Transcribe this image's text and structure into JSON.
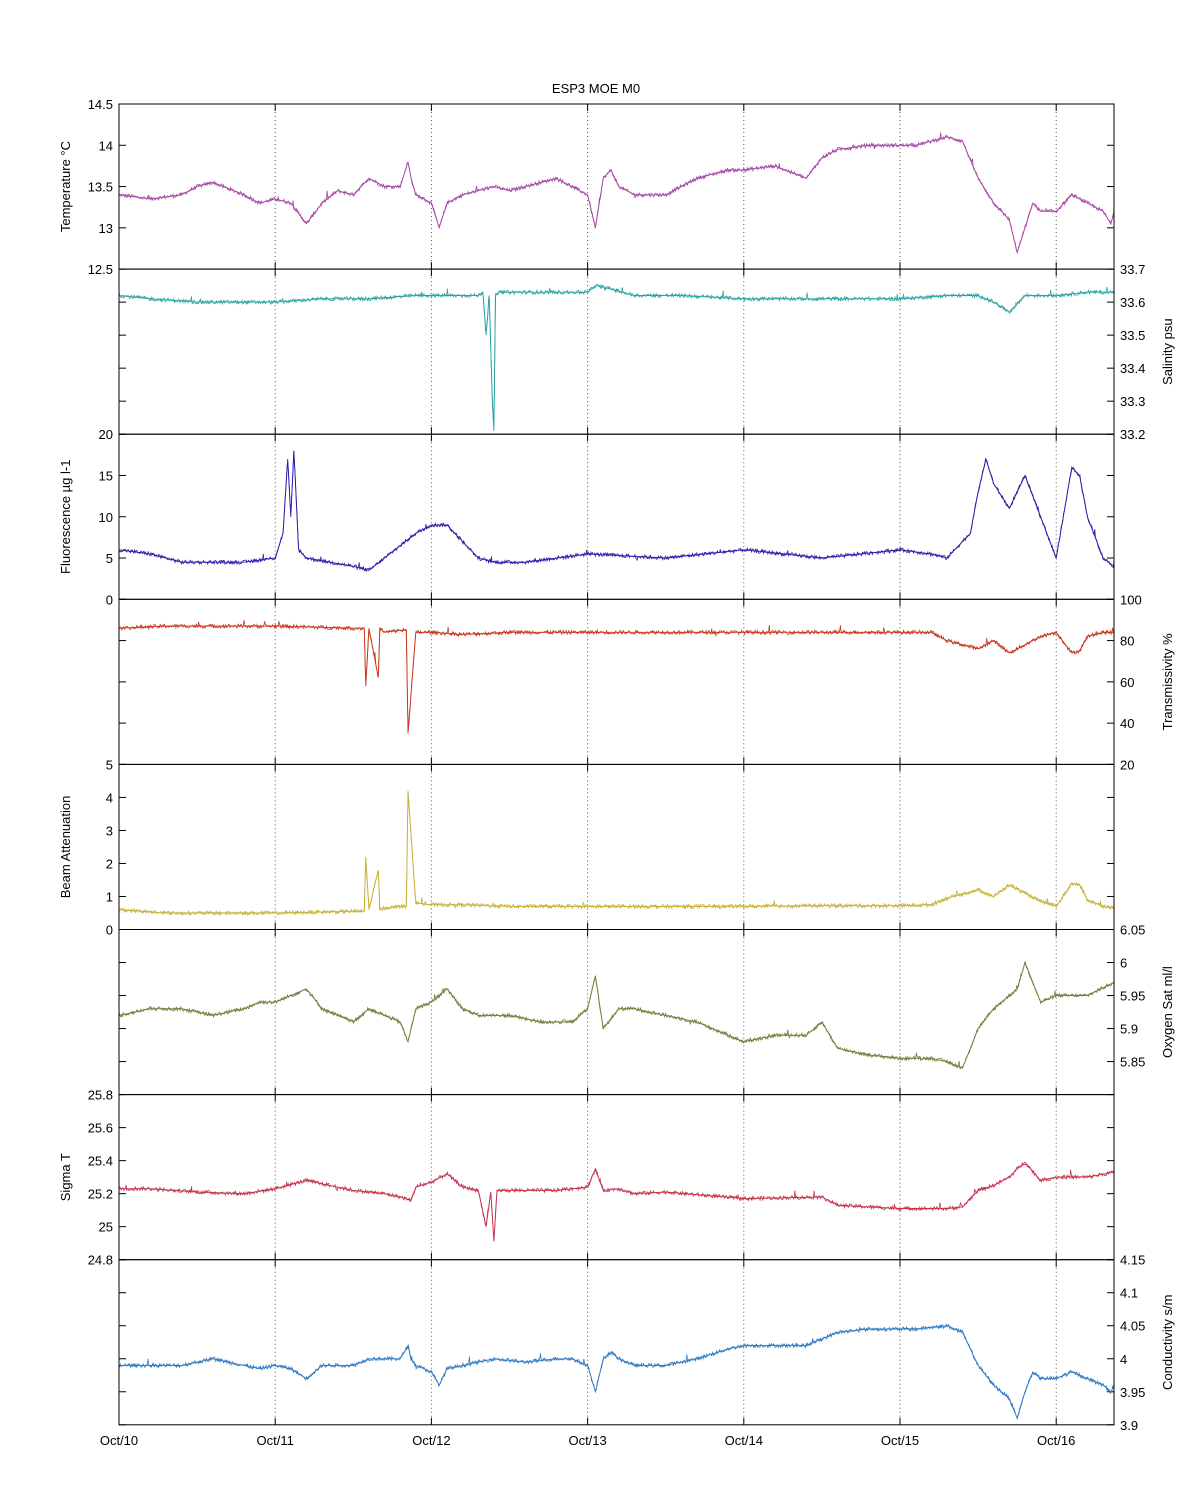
{
  "chart_data": {
    "type": "line",
    "title": "ESP3 MOE   M0",
    "x_tick_labels": [
      "Oct/10",
      "Oct/11",
      "Oct/12",
      "Oct/13",
      "Oct/14",
      "Oct/15",
      "Oct/16"
    ],
    "xlim": [
      "Oct/10",
      "Oct/16 + 0.37 day"
    ],
    "x_unit": "day since Oct/10",
    "grid": "vertical dotted at day ticks",
    "panels": [
      {
        "ylabel": "Temperature °C",
        "axis_side": "left",
        "color": "#a54aa5",
        "ylim": [
          12.5,
          14.5
        ],
        "ticks": [
          12.5,
          13,
          13.5,
          14,
          14.5
        ],
        "tick_labels": [
          "12.5",
          "13",
          "13.5",
          "14",
          "14.5"
        ],
        "x": [
          0,
          0.2,
          0.4,
          0.5,
          0.6,
          0.8,
          0.9,
          1.0,
          1.1,
          1.2,
          1.3,
          1.4,
          1.5,
          1.6,
          1.7,
          1.8,
          1.85,
          1.87,
          1.9,
          2.0,
          2.05,
          2.1,
          2.2,
          2.3,
          2.4,
          2.5,
          2.6,
          2.8,
          2.9,
          3.0,
          3.05,
          3.1,
          3.15,
          3.2,
          3.3,
          3.5,
          3.7,
          3.9,
          4.0,
          4.2,
          4.4,
          4.5,
          4.6,
          4.8,
          5.0,
          5.1,
          5.3,
          5.4,
          5.5,
          5.6,
          5.7,
          5.75,
          5.8,
          5.85,
          5.9,
          6.0,
          6.1,
          6.2,
          6.3,
          6.35,
          6.37
        ],
        "y": [
          13.4,
          13.35,
          13.4,
          13.5,
          13.55,
          13.4,
          13.3,
          13.35,
          13.3,
          13.05,
          13.3,
          13.45,
          13.4,
          13.6,
          13.5,
          13.5,
          13.8,
          13.6,
          13.4,
          13.3,
          13.0,
          13.3,
          13.4,
          13.45,
          13.5,
          13.45,
          13.5,
          13.6,
          13.5,
          13.4,
          13.0,
          13.6,
          13.7,
          13.5,
          13.4,
          13.4,
          13.6,
          13.7,
          13.7,
          13.75,
          13.6,
          13.85,
          13.95,
          14.0,
          14.0,
          14.0,
          14.1,
          14.05,
          13.6,
          13.3,
          13.1,
          12.7,
          13.0,
          13.3,
          13.2,
          13.2,
          13.4,
          13.3,
          13.2,
          13.05,
          13.2
        ]
      },
      {
        "ylabel": "Salinity psu",
        "axis_side": "right",
        "color": "#2aa3a3",
        "ylim": [
          33.2,
          33.7
        ],
        "ticks": [
          33.2,
          33.3,
          33.4,
          33.5,
          33.6,
          33.7
        ],
        "tick_labels": [
          "33.2",
          "33.3",
          "33.4",
          "33.5",
          "33.6",
          "33.7"
        ],
        "x": [
          0,
          0.2,
          0.5,
          1.0,
          1.3,
          1.6,
          1.9,
          2.1,
          2.3,
          2.33,
          2.35,
          2.37,
          2.39,
          2.4,
          2.41,
          2.43,
          2.5,
          2.8,
          3.0,
          3.05,
          3.15,
          3.3,
          3.6,
          4.0,
          4.5,
          5.0,
          5.3,
          5.5,
          5.6,
          5.7,
          5.8,
          6.0,
          6.2,
          6.3,
          6.37
        ],
        "y": [
          33.62,
          33.61,
          33.6,
          33.6,
          33.61,
          33.61,
          33.62,
          33.62,
          33.62,
          33.63,
          33.5,
          33.62,
          33.3,
          33.21,
          33.62,
          33.63,
          33.63,
          33.63,
          33.63,
          33.65,
          33.64,
          33.62,
          33.62,
          33.61,
          33.61,
          33.61,
          33.62,
          33.62,
          33.6,
          33.57,
          33.62,
          33.62,
          33.63,
          33.63,
          33.63
        ]
      },
      {
        "ylabel": "Fluorescence µg l-1",
        "axis_side": "left",
        "color": "#2a1ea8",
        "ylim": [
          0,
          20
        ],
        "ticks": [
          0,
          5,
          10,
          15,
          20
        ],
        "tick_labels": [
          "0",
          "5",
          "10",
          "15",
          "20"
        ],
        "x": [
          0,
          0.2,
          0.4,
          0.6,
          0.8,
          1.0,
          1.05,
          1.08,
          1.1,
          1.12,
          1.15,
          1.2,
          1.5,
          1.6,
          1.7,
          1.9,
          2.0,
          2.1,
          2.2,
          2.3,
          2.4,
          2.6,
          3.0,
          3.5,
          4.0,
          4.5,
          5.0,
          5.2,
          5.3,
          5.45,
          5.5,
          5.55,
          5.6,
          5.7,
          5.8,
          5.9,
          6.0,
          6.1,
          6.15,
          6.2,
          6.3,
          6.37
        ],
        "y": [
          6,
          5.5,
          4.5,
          4.5,
          4.5,
          5,
          8,
          17,
          10,
          18,
          6,
          5,
          4,
          3.5,
          5,
          8,
          9,
          9,
          7,
          5,
          4.5,
          4.5,
          5.5,
          5,
          6,
          5,
          6,
          5.5,
          5,
          8,
          13,
          17,
          14,
          11,
          15,
          10,
          5,
          16,
          15,
          10,
          5,
          4
        ]
      },
      {
        "ylabel": "Transmissivity %",
        "axis_side": "right",
        "color": "#c8371e",
        "ylim": [
          20,
          100
        ],
        "ticks": [
          20,
          40,
          60,
          80,
          100
        ],
        "tick_labels": [
          "20",
          "40",
          "60",
          "80",
          "100"
        ],
        "x": [
          0,
          0.3,
          1.0,
          1.5,
          1.57,
          1.58,
          1.6,
          1.66,
          1.67,
          1.7,
          1.8,
          1.84,
          1.85,
          1.9,
          2.0,
          2.2,
          2.5,
          3.0,
          3.5,
          4.0,
          4.5,
          5.0,
          5.2,
          5.3,
          5.5,
          5.6,
          5.7,
          5.8,
          5.9,
          6.0,
          6.1,
          6.15,
          6.2,
          6.3,
          6.37
        ],
        "y": [
          86,
          87,
          87,
          86,
          86,
          58,
          86,
          62,
          86,
          84,
          85,
          85,
          35,
          84,
          84,
          83,
          84,
          84,
          84,
          84,
          84,
          84,
          84,
          80,
          76,
          80,
          74,
          78,
          82,
          84,
          74,
          75,
          82,
          84,
          84
        ]
      },
      {
        "ylabel": "Beam Attenuation",
        "axis_side": "left",
        "color": "#c6b13a",
        "ylim": [
          0,
          5
        ],
        "ticks": [
          0,
          1,
          2,
          3,
          4,
          5
        ],
        "tick_labels": [
          "0",
          "1",
          "2",
          "3",
          "4",
          "5"
        ],
        "x": [
          0,
          0.3,
          1.0,
          1.5,
          1.57,
          1.58,
          1.6,
          1.66,
          1.67,
          1.7,
          1.8,
          1.84,
          1.85,
          1.9,
          2.0,
          2.2,
          2.5,
          3.0,
          3.5,
          4.0,
          4.5,
          5.0,
          5.2,
          5.3,
          5.5,
          5.6,
          5.7,
          5.8,
          5.9,
          6.0,
          6.1,
          6.15,
          6.2,
          6.3,
          6.37
        ],
        "y": [
          0.6,
          0.5,
          0.5,
          0.55,
          0.55,
          2.2,
          0.6,
          1.8,
          0.6,
          0.65,
          0.7,
          0.7,
          4.2,
          0.8,
          0.75,
          0.75,
          0.7,
          0.7,
          0.7,
          0.7,
          0.72,
          0.72,
          0.75,
          0.95,
          1.2,
          1.0,
          1.35,
          1.1,
          0.85,
          0.7,
          1.4,
          1.35,
          0.9,
          0.7,
          0.65
        ]
      },
      {
        "ylabel": "Oxygen Sat ml/l",
        "axis_side": "right",
        "color": "#7a7a3c",
        "ylim": [
          5.8,
          6.05
        ],
        "ticks": [
          5.85,
          5.9,
          5.95,
          6,
          6.05
        ],
        "tick_labels": [
          "5.85",
          "5.9",
          "5.95",
          "6",
          "6.05"
        ],
        "x": [
          0,
          0.2,
          0.4,
          0.6,
          0.8,
          0.9,
          1.0,
          1.1,
          1.2,
          1.3,
          1.5,
          1.6,
          1.7,
          1.8,
          1.85,
          1.9,
          2.0,
          2.1,
          2.2,
          2.3,
          2.5,
          2.7,
          2.9,
          3.0,
          3.05,
          3.1,
          3.2,
          3.3,
          3.5,
          3.7,
          3.9,
          4.0,
          4.2,
          4.4,
          4.5,
          4.6,
          4.8,
          5.0,
          5.2,
          5.3,
          5.4,
          5.5,
          5.6,
          5.7,
          5.75,
          5.8,
          5.9,
          6.0,
          6.2,
          6.37
        ],
        "y": [
          5.92,
          5.93,
          5.93,
          5.92,
          5.93,
          5.94,
          5.94,
          5.95,
          5.96,
          5.93,
          5.91,
          5.93,
          5.92,
          5.91,
          5.88,
          5.93,
          5.94,
          5.96,
          5.93,
          5.92,
          5.92,
          5.91,
          5.91,
          5.93,
          5.98,
          5.9,
          5.93,
          5.93,
          5.92,
          5.91,
          5.89,
          5.88,
          5.89,
          5.89,
          5.91,
          5.87,
          5.86,
          5.855,
          5.855,
          5.85,
          5.84,
          5.9,
          5.93,
          5.95,
          5.96,
          6.0,
          5.94,
          5.95,
          5.95,
          5.97
        ]
      },
      {
        "ylabel": "Sigma T",
        "axis_side": "left",
        "color": "#c4344e",
        "ylim": [
          24.8,
          25.8
        ],
        "ticks": [
          24.8,
          25,
          25.2,
          25.4,
          25.6,
          25.8
        ],
        "tick_labels": [
          "24.8",
          "25",
          "25.2",
          "25.4",
          "25.6",
          "25.8"
        ],
        "x": [
          0,
          0.2,
          0.5,
          0.8,
          1.0,
          1.2,
          1.5,
          1.7,
          1.8,
          1.87,
          1.9,
          2.0,
          2.1,
          2.2,
          2.3,
          2.35,
          2.38,
          2.4,
          2.42,
          2.5,
          2.8,
          3.0,
          3.05,
          3.1,
          3.2,
          3.3,
          3.5,
          4.0,
          4.5,
          4.6,
          4.8,
          5.0,
          5.2,
          5.3,
          5.4,
          5.5,
          5.6,
          5.7,
          5.75,
          5.8,
          5.9,
          6.0,
          6.2,
          6.37
        ],
        "y": [
          25.23,
          25.23,
          25.21,
          25.2,
          25.23,
          25.28,
          25.22,
          25.2,
          25.18,
          25.16,
          25.24,
          25.27,
          25.32,
          25.24,
          25.22,
          25.0,
          25.21,
          24.91,
          25.22,
          25.22,
          25.22,
          25.24,
          25.35,
          25.22,
          25.23,
          25.2,
          25.21,
          25.17,
          25.18,
          25.13,
          25.12,
          25.11,
          25.11,
          25.11,
          25.12,
          25.22,
          25.25,
          25.3,
          25.35,
          25.39,
          25.28,
          25.3,
          25.3,
          25.33
        ]
      },
      {
        "ylabel": "Conductivity s/m",
        "axis_side": "right",
        "color": "#2f7ac0",
        "ylim": [
          3.9,
          4.15
        ],
        "ticks": [
          3.9,
          3.95,
          4,
          4.05,
          4.1,
          4.15
        ],
        "tick_labels": [
          "3.9",
          "3.95",
          "4",
          "4.05",
          "4.1",
          "4.15"
        ],
        "x": [
          0,
          0.2,
          0.4,
          0.6,
          0.8,
          0.9,
          1.0,
          1.1,
          1.2,
          1.3,
          1.5,
          1.6,
          1.7,
          1.8,
          1.85,
          1.87,
          1.9,
          2.0,
          2.05,
          2.1,
          2.2,
          2.4,
          2.6,
          2.8,
          2.9,
          3.0,
          3.05,
          3.1,
          3.15,
          3.2,
          3.3,
          3.5,
          3.7,
          3.9,
          4.0,
          4.2,
          4.4,
          4.5,
          4.6,
          4.8,
          5.0,
          5.1,
          5.3,
          5.4,
          5.5,
          5.6,
          5.7,
          5.75,
          5.8,
          5.85,
          5.9,
          6.0,
          6.1,
          6.2,
          6.3,
          6.35,
          6.37
        ],
        "y": [
          3.99,
          3.99,
          3.99,
          4.0,
          3.99,
          3.985,
          3.99,
          3.985,
          3.97,
          3.99,
          3.99,
          4.0,
          4.0,
          4.0,
          4.02,
          4.0,
          3.99,
          3.98,
          3.96,
          3.985,
          3.99,
          4.0,
          3.995,
          4.0,
          4.0,
          3.99,
          3.95,
          4.0,
          4.01,
          4.0,
          3.99,
          3.99,
          4.0,
          4.015,
          4.02,
          4.02,
          4.02,
          4.03,
          4.04,
          4.045,
          4.045,
          4.045,
          4.05,
          4.04,
          3.99,
          3.96,
          3.94,
          3.91,
          3.95,
          3.98,
          3.97,
          3.97,
          3.98,
          3.97,
          3.96,
          3.95,
          3.96
        ]
      }
    ]
  }
}
